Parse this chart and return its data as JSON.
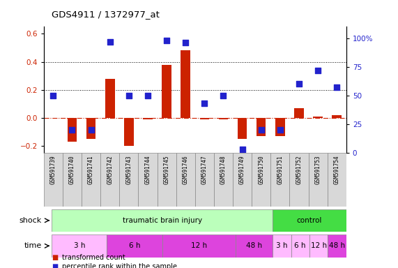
{
  "title": "GDS4911 / 1372977_at",
  "samples": [
    "GSM591739",
    "GSM591740",
    "GSM591741",
    "GSM591742",
    "GSM591743",
    "GSM591744",
    "GSM591745",
    "GSM591746",
    "GSM591747",
    "GSM591748",
    "GSM591749",
    "GSM591750",
    "GSM591751",
    "GSM591752",
    "GSM591753",
    "GSM591754"
  ],
  "red_values": [
    0.0,
    -0.17,
    -0.15,
    0.28,
    -0.2,
    -0.01,
    0.38,
    0.48,
    -0.01,
    -0.01,
    -0.15,
    -0.13,
    -0.13,
    0.07,
    0.01,
    0.02
  ],
  "blue_percentiles": [
    50,
    20,
    20,
    97,
    50,
    50,
    98,
    96,
    43,
    50,
    3,
    20,
    20,
    60,
    72,
    57
  ],
  "ylim_left": [
    -0.25,
    0.65
  ],
  "ylim_right": [
    0,
    110
  ],
  "yticks_left": [
    -0.2,
    0.0,
    0.2,
    0.4,
    0.6
  ],
  "yticks_right": [
    0,
    25,
    50,
    75,
    100
  ],
  "ytick_labels_right": [
    "0",
    "25",
    "50",
    "75",
    "100%"
  ],
  "hlines": [
    0.2,
    0.4
  ],
  "red_color": "#CC2200",
  "blue_color": "#2222CC",
  "shock_groups": [
    {
      "label": "traumatic brain injury",
      "start": 0,
      "end": 12,
      "color": "#bbffbb"
    },
    {
      "label": "control",
      "start": 12,
      "end": 16,
      "color": "#44dd44"
    }
  ],
  "time_groups": [
    {
      "label": "3 h",
      "start": 0,
      "end": 3,
      "color": "#ffbbff"
    },
    {
      "label": "6 h",
      "start": 3,
      "end": 6,
      "color": "#dd44dd"
    },
    {
      "label": "12 h",
      "start": 6,
      "end": 10,
      "color": "#dd44dd"
    },
    {
      "label": "48 h",
      "start": 10,
      "end": 12,
      "color": "#dd44dd"
    },
    {
      "label": "3 h",
      "start": 12,
      "end": 13,
      "color": "#ffbbff"
    },
    {
      "label": "6 h",
      "start": 13,
      "end": 14,
      "color": "#ffbbff"
    },
    {
      "label": "12 h",
      "start": 14,
      "end": 15,
      "color": "#ffbbff"
    },
    {
      "label": "48 h",
      "start": 15,
      "end": 16,
      "color": "#dd44dd"
    }
  ],
  "shock_label": "shock",
  "time_label": "time",
  "legend_red": "transformed count",
  "legend_blue": "percentile rank within the sample",
  "bar_width": 0.5,
  "dot_size": 28,
  "label_bg_color": "#d8d8d8",
  "label_border_color": "#888888"
}
